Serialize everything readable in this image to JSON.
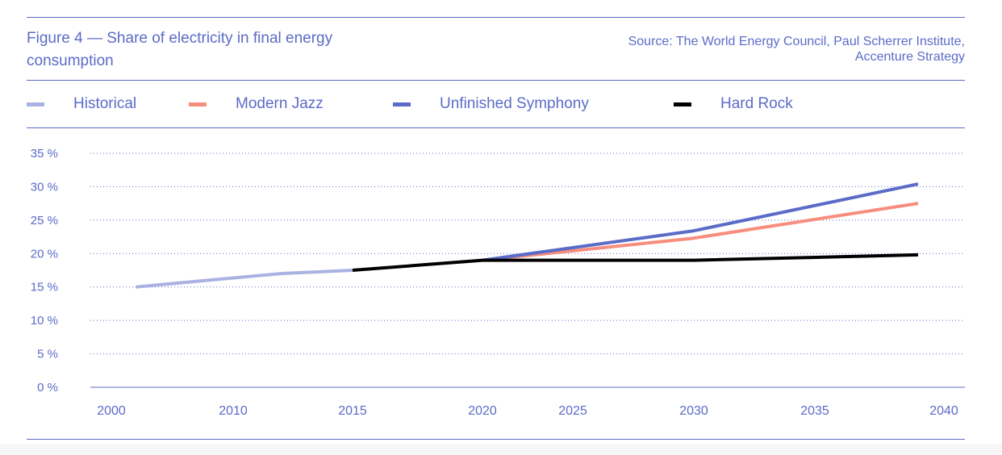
{
  "header": {
    "title": "Figure 4 — Share of electricity in final energy consumption",
    "source_line1": "Source: The World Energy Council, Paul Scherrer Institute,",
    "source_line2": "Accenture Strategy"
  },
  "chart_data": {
    "type": "line",
    "title": "Figure 4 — Share of electricity in final energy consumption",
    "xlabel": "",
    "ylabel": "",
    "ylim": [
      0,
      35
    ],
    "grid": true,
    "legend_placement": "top",
    "y_ticks": [
      0,
      5,
      10,
      15,
      20,
      25,
      30,
      35
    ],
    "y_tick_labels": [
      "0 %",
      "5 %",
      "10 %",
      "15 %",
      "20 %",
      "25 %",
      "30 %",
      "35 %"
    ],
    "x_ticks": [
      2000,
      2010,
      2015,
      2020,
      2025,
      2030,
      2035,
      2040
    ],
    "x_tick_labels": [
      "2000",
      "2010",
      "2015",
      "2020",
      "2025",
      "2030",
      "2035",
      "2040"
    ],
    "series": [
      {
        "name": "Historical",
        "color": "#aab2e2",
        "x": [
          2002,
          2012,
          2015
        ],
        "values": [
          15,
          17,
          17.5
        ]
      },
      {
        "name": "Modern Jazz",
        "color": "#f78d7d",
        "x": [
          2020,
          2030,
          2039
        ],
        "values": [
          19,
          22.3,
          27.5
        ]
      },
      {
        "name": "Unfinished Symphony",
        "color": "#5b6bc8",
        "x": [
          2020,
          2030,
          2039
        ],
        "values": [
          19,
          23.4,
          30.4
        ]
      },
      {
        "name": "Hard Rock",
        "color": "#000000",
        "x": [
          2015,
          2020,
          2030,
          2039
        ],
        "values": [
          17.5,
          19,
          19,
          19.8
        ]
      }
    ]
  }
}
